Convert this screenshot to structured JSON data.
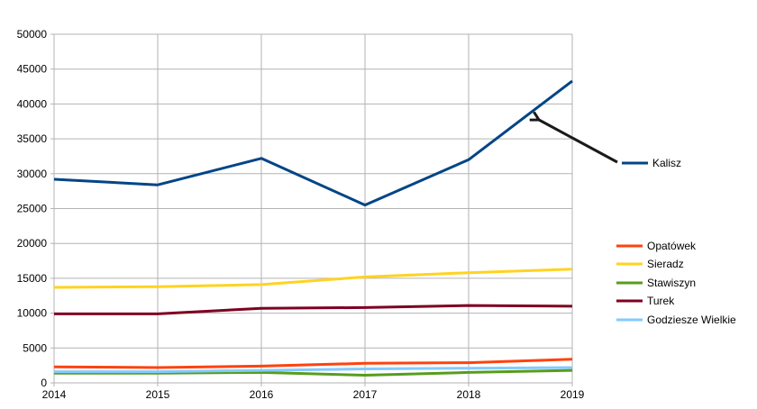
{
  "chart_data": {
    "type": "line",
    "title": "",
    "xlabel": "",
    "ylabel": "",
    "x": [
      2014,
      2015,
      2016,
      2017,
      2018,
      2019
    ],
    "ylim": [
      0,
      50000
    ],
    "yticks": [
      0,
      5000,
      10000,
      15000,
      20000,
      25000,
      30000,
      35000,
      40000,
      45000,
      50000
    ],
    "grid": true,
    "legend_placement": "right",
    "series": [
      {
        "name": "Kalisz",
        "color": "#004586",
        "values": [
          29200,
          28400,
          32200,
          25500,
          32000,
          43300
        ]
      },
      {
        "name": "Opatówek",
        "color": "#ff420e",
        "values": [
          2300,
          2200,
          2400,
          2800,
          2900,
          3400
        ]
      },
      {
        "name": "Sieradz",
        "color": "#ffd320",
        "values": [
          13700,
          13800,
          14100,
          15200,
          15800,
          16300
        ]
      },
      {
        "name": "Stawiszyn",
        "color": "#579d1c",
        "values": [
          1400,
          1400,
          1500,
          1100,
          1500,
          1800
        ]
      },
      {
        "name": "Turek",
        "color": "#7e0021",
        "values": [
          9900,
          9900,
          10700,
          10800,
          11100,
          11000
        ]
      },
      {
        "name": "Godziesze Wielkie",
        "color": "#83caff",
        "values": [
          1600,
          1600,
          1800,
          2000,
          2100,
          2200
        ]
      }
    ],
    "annotation": {
      "type": "arrow",
      "target_series": "Kalisz",
      "color": "#1a1a1a"
    }
  }
}
